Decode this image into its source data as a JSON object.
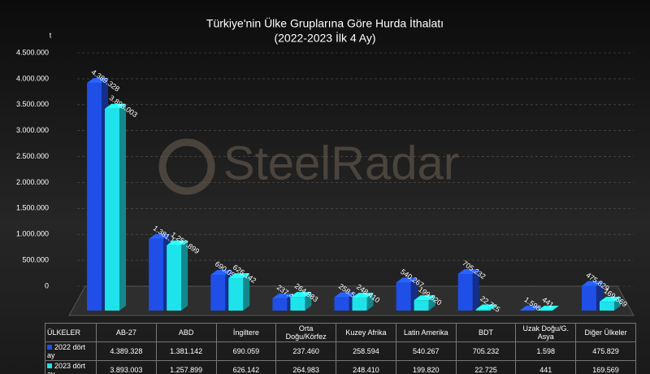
{
  "chart_data": {
    "type": "bar3d",
    "title": "Türkiye'nin Ülke Gruplarına Göre Hurda İthalatı",
    "subtitle": "(2022-2023 İlk 4 Ay)",
    "y_unit": "t",
    "watermark": "SteelRadar",
    "table_header": "ÜLKELER",
    "categories": [
      "AB-27",
      "ABD",
      "İngiltere",
      "Orta Doğu/Körfez",
      "Kuzey Afrika",
      "Latin Amerika",
      "BDT",
      "Uzak Doğu/G. Asya",
      "Diğer Ülkeler"
    ],
    "series": [
      {
        "name": "2022 dört ay",
        "color": "#1f4fe6",
        "values": [
          4389328,
          1381142,
          690059,
          237460,
          258594,
          540267,
          705232,
          1598,
          475829
        ],
        "value_labels": [
          "4.389.328",
          "1.381.142",
          "690.059",
          "237.460",
          "258.594",
          "540.267",
          "705.232",
          "1.598",
          "475.829"
        ]
      },
      {
        "name": "2023 dört ay",
        "color": "#1ee3ea",
        "values": [
          3893003,
          1257899,
          626142,
          264983,
          248410,
          199820,
          22725,
          441,
          169569
        ],
        "value_labels": [
          "3.893.003",
          "1.257.899",
          "626.142",
          "264.983",
          "248.410",
          "199.820",
          "22.725",
          "441",
          "169.569"
        ]
      }
    ],
    "ylim": [
      0,
      4500000
    ],
    "yticks": [
      0,
      {
        "value": 500000,
        "label": "500.000"
      },
      {
        "value": 1000000,
        "label": "1.000.000"
      },
      {
        "value": 1500000,
        "label": "1.500.000"
      },
      {
        "value": 2000000,
        "label": "2.000.000"
      },
      {
        "value": 2500000,
        "label": "2.500.000"
      },
      {
        "value": 3000000,
        "label": "3.000.000"
      },
      {
        "value": 3500000,
        "label": "3.500.000"
      },
      {
        "value": 4000000,
        "label": "4.000.000"
      },
      {
        "value": 4500000,
        "label": "4.500.000"
      }
    ],
    "grid": true
  }
}
